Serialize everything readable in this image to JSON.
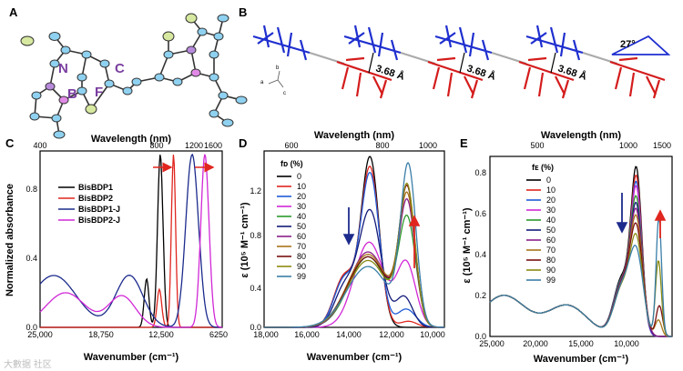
{
  "panels": {
    "a": {
      "label": "A",
      "atoms": [
        "N",
        "B",
        "F",
        "C"
      ]
    },
    "b": {
      "label": "B",
      "distances": [
        "3.68 Å",
        "3.68 Å",
        "3.68 Å"
      ],
      "angle": "27°",
      "axes": [
        "a",
        "b",
        "c"
      ]
    },
    "c": {
      "label": "C"
    },
    "d": {
      "label": "D"
    },
    "e": {
      "label": "E"
    }
  },
  "watermark": "大數据 社区",
  "chart_data": [
    {
      "id": "C",
      "type": "line",
      "xlabel": "Wavenumber (cm⁻¹)",
      "x2label": "Wavelength (nm)",
      "ylabel": "Normalized absorbance",
      "xlim": [
        25000,
        5000
      ],
      "ylim": [
        0,
        1.02
      ],
      "xticks": [
        "25,000",
        "18,750",
        "12,500",
        "6250"
      ],
      "x2ticks": [
        "400",
        "800",
        "1200",
        "1600"
      ],
      "yticks": [
        "0.0",
        "0.4",
        "0.8"
      ],
      "series": [
        {
          "name": "BisBDP1",
          "color": "#000000",
          "peaks": [
            [
              11800,
              1.0,
              300
            ],
            [
              13300,
              0.28,
              260
            ]
          ],
          "base": 0.0
        },
        {
          "name": "BisBDP2",
          "color": "#e0261f",
          "peaks": [
            [
              10350,
              1.0,
              230
            ],
            [
              11900,
              0.22,
              260
            ]
          ],
          "base": 0.0
        },
        {
          "name": "BisBDP1-J",
          "color": "#1c2b8c",
          "peaks": [
            [
              8300,
              1.0,
              700
            ],
            [
              15200,
              0.3,
              1500
            ],
            [
              23500,
              0.3,
              2500
            ]
          ],
          "base": 0.0
        },
        {
          "name": "BisBDP2-J",
          "color": "#d128d6",
          "peaks": [
            [
              6900,
              1.0,
              450
            ],
            [
              16000,
              0.18,
              1500
            ],
            [
              22200,
              0.2,
              2200
            ]
          ],
          "base": 0.0
        }
      ]
    },
    {
      "id": "D",
      "type": "line",
      "xlabel": "Wavenumber (cm⁻¹)",
      "x2label": "Wavelength (nm)",
      "ylabel": "ε (10⁵ M⁻¹ cm⁻¹)",
      "legend_title": "fᴅ (%)",
      "xlim": [
        18000,
        9500
      ],
      "ylim": [
        0,
        1.45
      ],
      "xticks": [
        "18,000",
        "16,000",
        "14,000",
        "12,000",
        "10,000"
      ],
      "x2ticks": [
        "600",
        "800",
        "1000"
      ],
      "yticks": [
        "0.0",
        "0.4",
        "0.8",
        "1.2"
      ],
      "series": [
        {
          "name": "0",
          "color": "#000000",
          "peaks": [
            [
              13000,
              1.38,
              420
            ],
            [
              14200,
              0.42,
              500
            ]
          ]
        },
        {
          "name": "10",
          "color": "#e0261f",
          "peaks": [
            [
              13000,
              1.3,
              430
            ],
            [
              14200,
              0.42,
              500
            ],
            [
              11200,
              0.05,
              400
            ]
          ]
        },
        {
          "name": "20",
          "color": "#1f5bd6",
          "peaks": [
            [
              13000,
              1.25,
              440
            ],
            [
              14200,
              0.4,
              500
            ],
            [
              11300,
              0.15,
              450
            ]
          ]
        },
        {
          "name": "30",
          "color": "#d128d6",
          "peaks": [
            [
              13050,
              0.7,
              700
            ],
            [
              11300,
              0.52,
              450
            ]
          ]
        },
        {
          "name": "40",
          "color": "#2c9a2c",
          "peaks": [
            [
              13100,
              0.58,
              900
            ],
            [
              11250,
              0.85,
              400
            ]
          ]
        },
        {
          "name": "50",
          "color": "#141c7a",
          "peaks": [
            [
              13000,
              0.95,
              520
            ],
            [
              14200,
              0.32,
              500
            ],
            [
              11400,
              0.25,
              400
            ]
          ]
        },
        {
          "name": "60",
          "color": "#8a1f8a",
          "peaks": [
            [
              13100,
              0.62,
              900
            ],
            [
              11250,
              0.98,
              380
            ]
          ]
        },
        {
          "name": "70",
          "color": "#a8751a",
          "peaks": [
            [
              13100,
              0.6,
              950
            ],
            [
              11250,
              1.02,
              380
            ]
          ]
        },
        {
          "name": "80",
          "color": "#7a1010",
          "peaks": [
            [
              13100,
              0.58,
              950
            ],
            [
              11250,
              1.08,
              370
            ]
          ]
        },
        {
          "name": "90",
          "color": "#8a8a12",
          "peaks": [
            [
              13100,
              0.55,
              950
            ],
            [
              11250,
              1.1,
              370
            ]
          ]
        },
        {
          "name": "99",
          "color": "#3a7ea8",
          "peaks": [
            [
              13100,
              0.5,
              1000
            ],
            [
              11200,
              1.27,
              360
            ]
          ]
        }
      ]
    },
    {
      "id": "E",
      "type": "line",
      "xlabel": "Wavenumber (cm⁻¹)",
      "x2label": "Wavelength (nm)",
      "ylabel": "ε (10⁵ M⁻¹ cm⁻¹)",
      "legend_title": "fᴇ (%)",
      "xlim": [
        25000,
        5000
      ],
      "ylim": [
        0,
        0.88
      ],
      "xticks": [
        "25,000",
        "20,000",
        "15,000",
        "10,000"
      ],
      "x2ticks": [
        "500",
        "1000",
        "1500"
      ],
      "yticks": [
        "0.0",
        "0.2",
        "0.4",
        "0.6",
        "0.8"
      ],
      "series": [
        {
          "name": "0",
          "color": "#000000",
          "peaks": [
            [
              8900,
              0.77,
              600
            ],
            [
              10500,
              0.28,
              900
            ],
            [
              16500,
              0.15,
              2200
            ],
            [
              23500,
              0.2,
              2500
            ]
          ]
        },
        {
          "name": "10",
          "color": "#e0261f",
          "peaks": [
            [
              8900,
              0.73,
              600
            ],
            [
              10500,
              0.27,
              900
            ],
            [
              16500,
              0.15,
              2200
            ],
            [
              23500,
              0.2,
              2500
            ]
          ]
        },
        {
          "name": "20",
          "color": "#1f5bd6",
          "peaks": [
            [
              8900,
              0.7,
              600
            ],
            [
              10500,
              0.27,
              900
            ],
            [
              16500,
              0.15,
              2200
            ],
            [
              23500,
              0.2,
              2500
            ]
          ]
        },
        {
          "name": "30",
          "color": "#d128d6",
          "peaks": [
            [
              8900,
              0.68,
              620
            ],
            [
              10500,
              0.26,
              900
            ],
            [
              16500,
              0.15,
              2200
            ],
            [
              23500,
              0.2,
              2500
            ]
          ]
        },
        {
          "name": "40",
          "color": "#2c9a2c",
          "peaks": [
            [
              8900,
              0.63,
              650
            ],
            [
              10500,
              0.26,
              900
            ],
            [
              16500,
              0.15,
              2200
            ],
            [
              23500,
              0.2,
              2500
            ]
          ]
        },
        {
          "name": "50",
          "color": "#141c7a",
          "peaks": [
            [
              8900,
              0.6,
              650
            ],
            [
              10500,
              0.25,
              900
            ],
            [
              16500,
              0.15,
              2200
            ],
            [
              23500,
              0.2,
              2500
            ]
          ]
        },
        {
          "name": "60",
          "color": "#8a1f8a",
          "peaks": [
            [
              8900,
              0.57,
              680
            ],
            [
              10500,
              0.25,
              900
            ],
            [
              16500,
              0.15,
              2200
            ],
            [
              23500,
              0.2,
              2500
            ]
          ]
        },
        {
          "name": "70",
          "color": "#a8751a",
          "peaks": [
            [
              8900,
              0.54,
              680
            ],
            [
              10500,
              0.24,
              900
            ],
            [
              16500,
              0.15,
              2200
            ],
            [
              23500,
              0.2,
              2500
            ],
            [
              6500,
              0.08,
              350
            ]
          ]
        },
        {
          "name": "80",
          "color": "#7a1010",
          "peaks": [
            [
              8900,
              0.5,
              700
            ],
            [
              10500,
              0.24,
              900
            ],
            [
              16500,
              0.15,
              2200
            ],
            [
              23500,
              0.2,
              2500
            ],
            [
              6400,
              0.15,
              350
            ]
          ]
        },
        {
          "name": "90",
          "color": "#8a8a12",
          "peaks": [
            [
              8900,
              0.45,
              700
            ],
            [
              10500,
              0.23,
              900
            ],
            [
              16500,
              0.15,
              2200
            ],
            [
              23500,
              0.2,
              2500
            ],
            [
              6500,
              0.37,
              320
            ]
          ]
        },
        {
          "name": "99",
          "color": "#3a7ea8",
          "peaks": [
            [
              8900,
              0.39,
              750
            ],
            [
              10500,
              0.23,
              900
            ],
            [
              16500,
              0.15,
              2200
            ],
            [
              23500,
              0.2,
              2500
            ],
            [
              6450,
              0.58,
              300
            ]
          ]
        }
      ]
    }
  ]
}
